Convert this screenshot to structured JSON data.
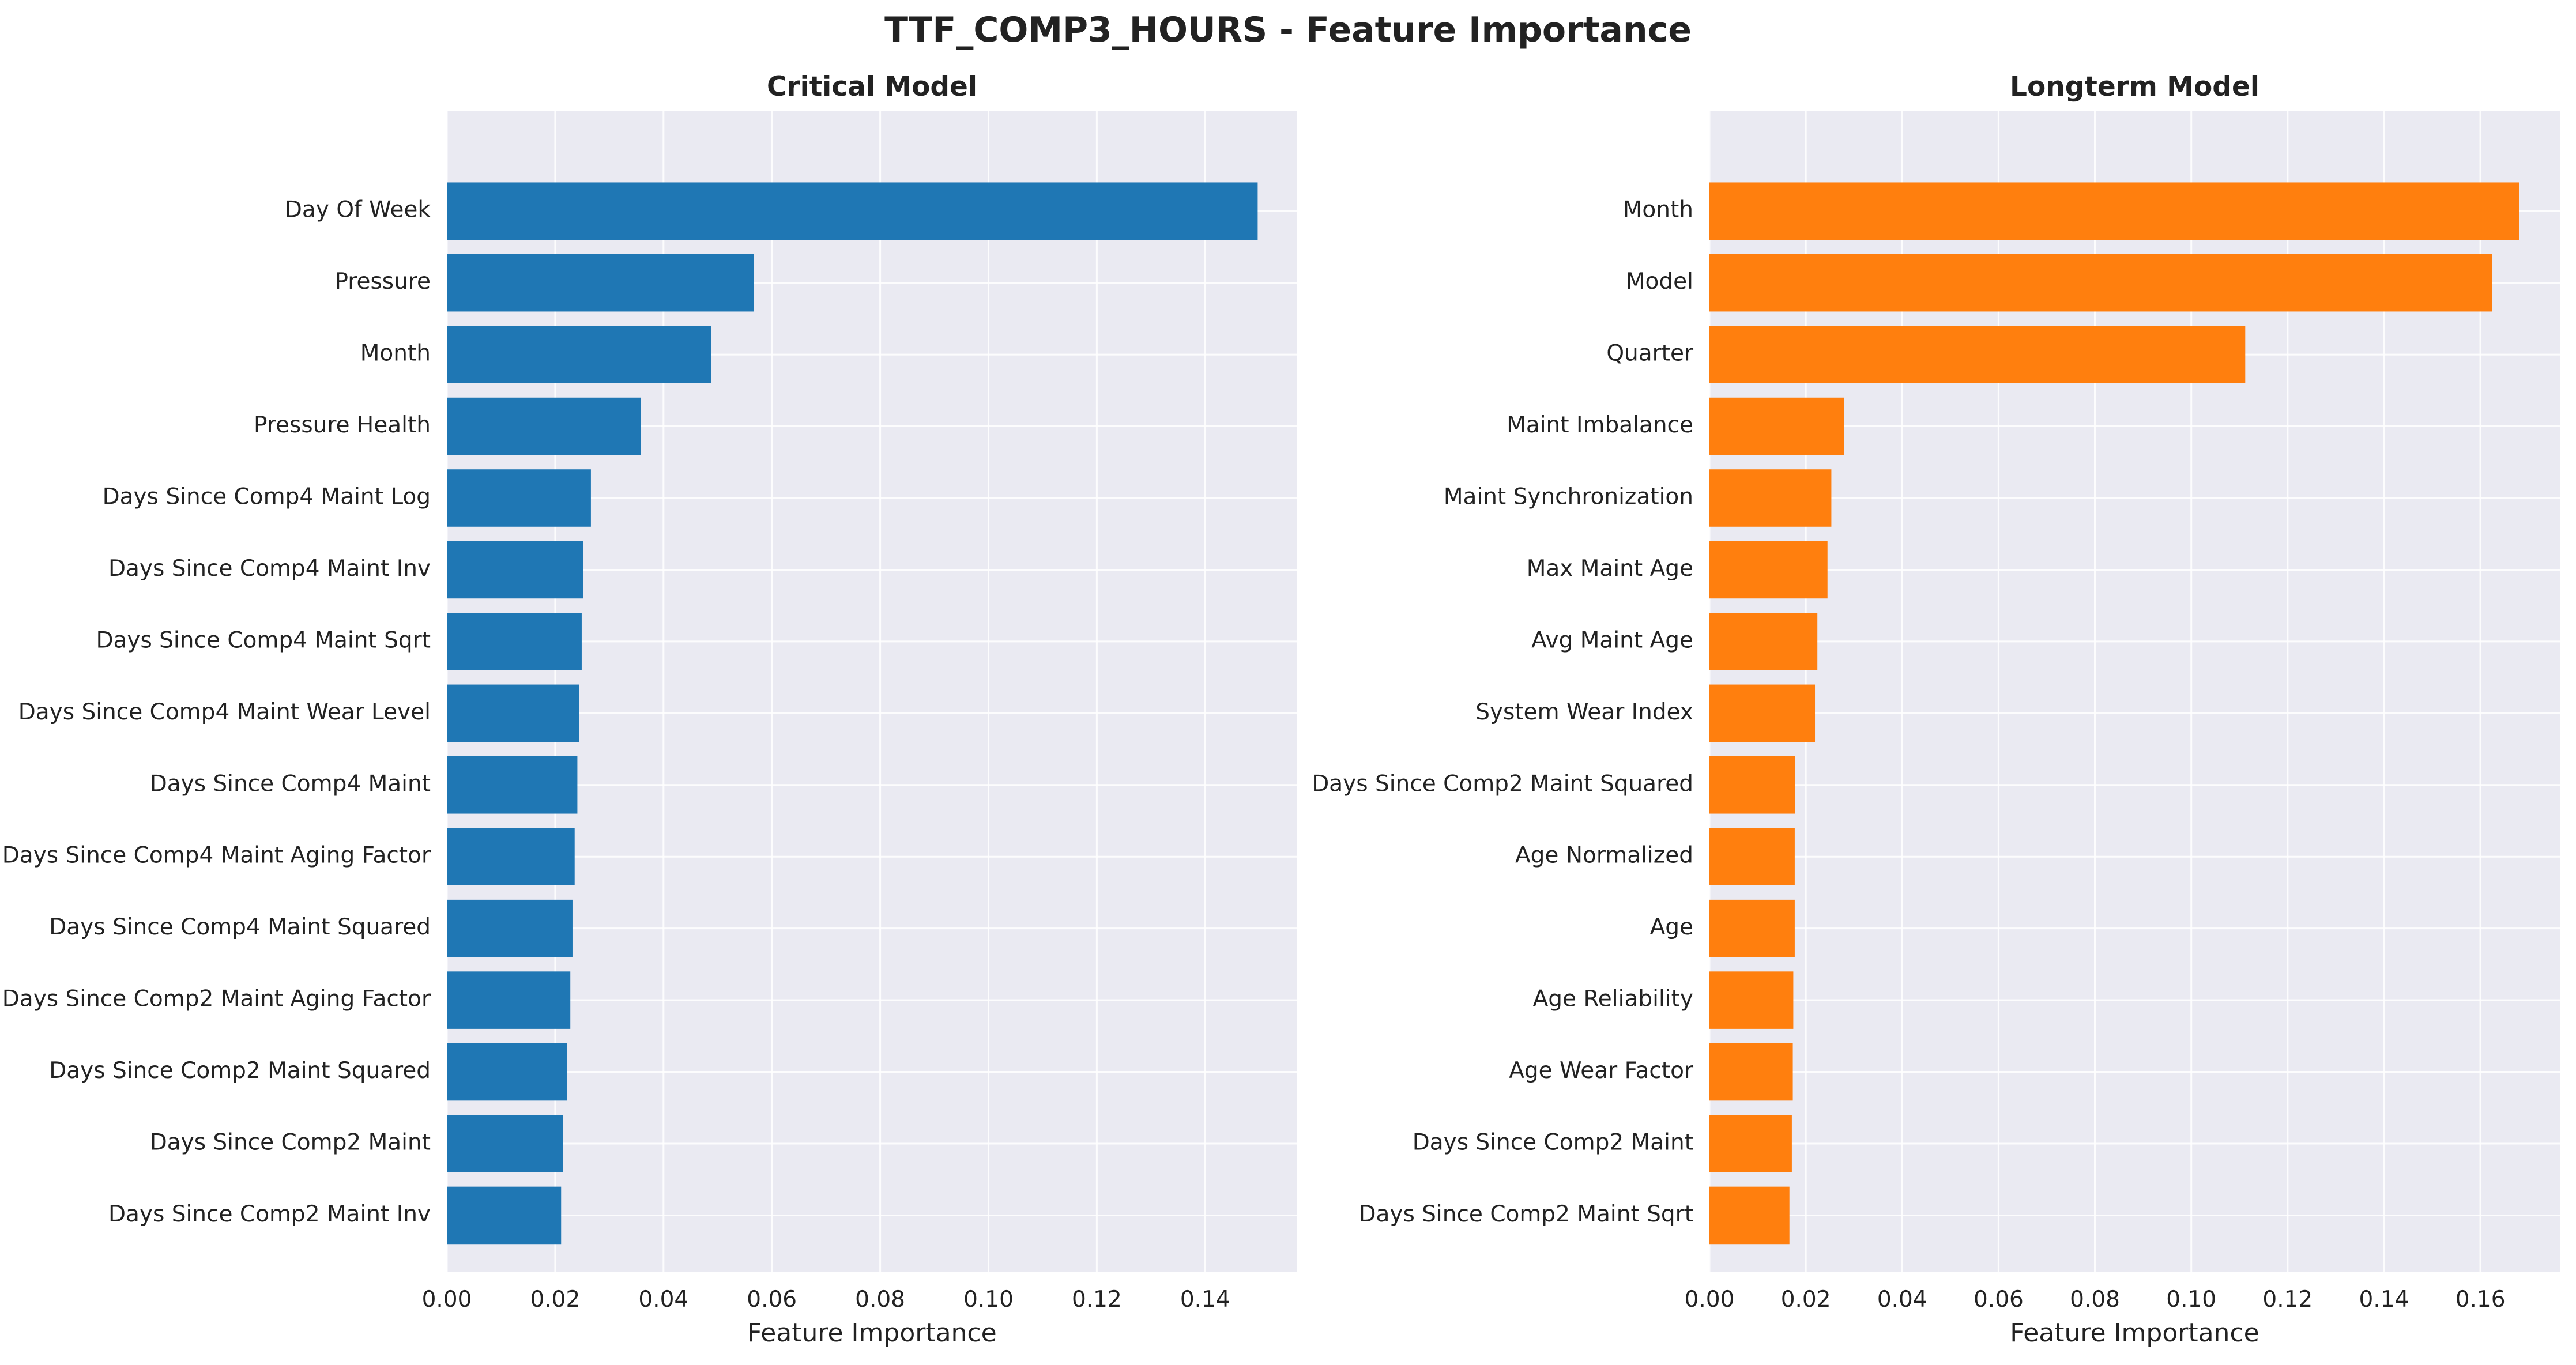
{
  "figure": {
    "title": "TTF_COMP3_HOURS - Feature Importance"
  },
  "chart_data": [
    {
      "type": "bar",
      "orientation": "horizontal",
      "title": "Critical Model",
      "xlabel": "Feature Importance",
      "ylabel": "",
      "xlim": [
        0,
        0.157
      ],
      "xticks": [
        "0.00",
        "0.02",
        "0.04",
        "0.06",
        "0.08",
        "0.10",
        "0.12",
        "0.14"
      ],
      "grid": true,
      "color": "#1f77b4",
      "categories": [
        "Day Of Week",
        "Pressure",
        "Month",
        "Pressure Health",
        "Days Since Comp4 Maint Log",
        "Days Since Comp4 Maint Inv",
        "Days Since Comp4 Maint Sqrt",
        "Days Since Comp4 Maint Wear Level",
        "Days Since Comp4 Maint",
        "Days Since Comp4 Maint Aging Factor",
        "Days Since Comp4 Maint Squared",
        "Days Since Comp2 Maint Aging Factor",
        "Days Since Comp2 Maint Squared",
        "Days Since Comp2 Maint",
        "Days Since Comp2 Maint Inv"
      ],
      "values": [
        0.1497,
        0.0567,
        0.0488,
        0.0358,
        0.0266,
        0.0252,
        0.0249,
        0.0244,
        0.0241,
        0.0236,
        0.0232,
        0.0228,
        0.0222,
        0.0215,
        0.0211
      ]
    },
    {
      "type": "bar",
      "orientation": "horizontal",
      "title": "Longterm Model",
      "xlabel": "Feature Importance",
      "ylabel": "",
      "xlim": [
        0,
        0.1765
      ],
      "xticks": [
        "0.00",
        "0.02",
        "0.04",
        "0.06",
        "0.08",
        "0.10",
        "0.12",
        "0.14",
        "0.16"
      ],
      "grid": true,
      "color": "#ff7f0e",
      "categories": [
        "Month",
        "Model",
        "Quarter",
        "Maint Imbalance",
        "Maint Synchronization",
        "Max Maint Age",
        "Avg Maint Age",
        "System Wear Index",
        "Days Since Comp2 Maint Squared",
        "Age Normalized",
        "Age",
        "Age Reliability",
        "Age Wear Factor",
        "Days Since Comp2 Maint",
        "Days Since Comp2 Maint Sqrt"
      ],
      "values": [
        0.1681,
        0.1625,
        0.1112,
        0.0279,
        0.0253,
        0.0245,
        0.0224,
        0.0219,
        0.0178,
        0.0177,
        0.0177,
        0.0174,
        0.0173,
        0.0171,
        0.0166
      ]
    }
  ]
}
